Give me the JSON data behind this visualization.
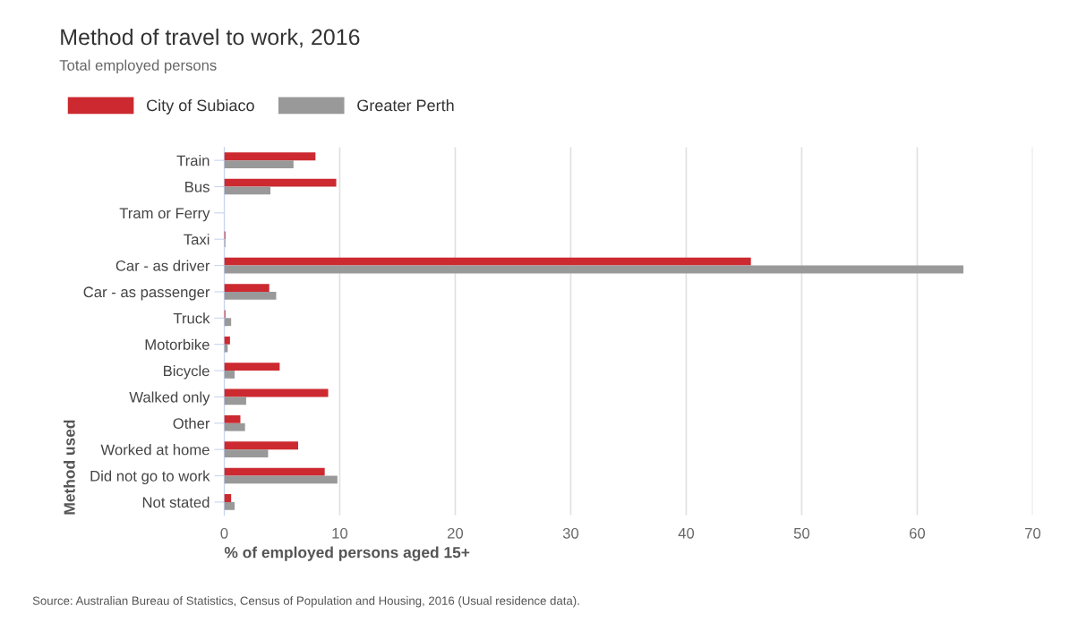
{
  "chart_data": {
    "type": "bar",
    "orientation": "horizontal",
    "title": "Method of travel to work, 2016",
    "subtitle": "Total employed persons",
    "xlabel": "% of employed persons aged 15+",
    "ylabel": "Method used",
    "categories": [
      "Train",
      "Bus",
      "Tram or Ferry",
      "Taxi",
      "Car - as driver",
      "Car - as passenger",
      "Truck",
      "Motorbike",
      "Bicycle",
      "Walked only",
      "Other",
      "Worked at home",
      "Did not go to work",
      "Not stated"
    ],
    "series": [
      {
        "name": "City of Subiaco",
        "color": "#cc2a30",
        "values": [
          7.9,
          9.7,
          0,
          0.1,
          45.6,
          3.9,
          0.1,
          0.5,
          4.8,
          9.0,
          1.4,
          6.4,
          8.7,
          0.6
        ]
      },
      {
        "name": "Greater Perth",
        "color": "#999999",
        "values": [
          6.0,
          4.0,
          0,
          0.1,
          64.0,
          4.5,
          0.6,
          0.3,
          0.9,
          1.9,
          1.8,
          3.8,
          9.8,
          0.9
        ]
      }
    ],
    "xlim": [
      0,
      70
    ],
    "xticks": [
      0,
      10,
      20,
      30,
      40,
      50,
      60,
      70
    ],
    "grid": "x",
    "legend": "top left",
    "annotations": [
      "Source: Australian Bureau of Statistics, Census of Population and Housing, 2016 (Usual residence data)."
    ]
  }
}
